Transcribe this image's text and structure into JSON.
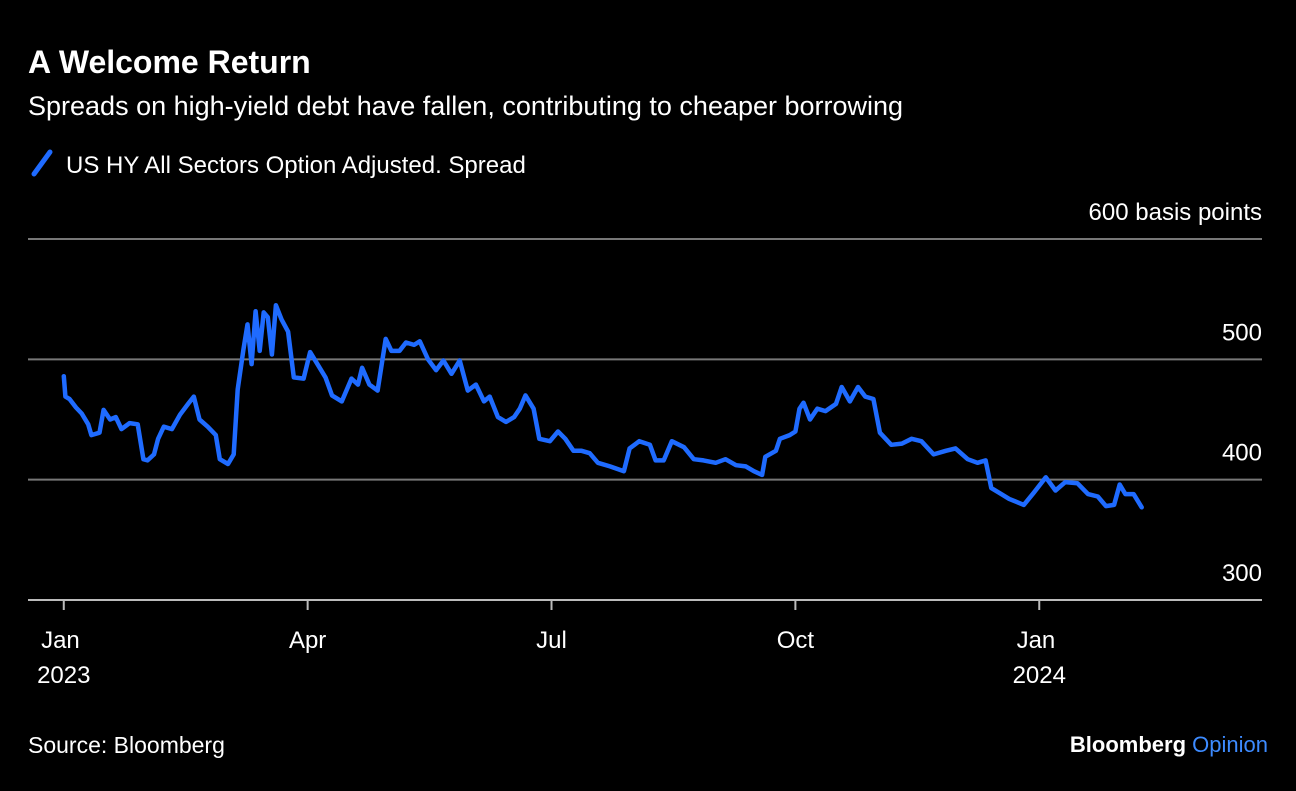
{
  "chart_data": {
    "type": "line",
    "title": "A Welcome Return",
    "subtitle": "Spreads on high-yield debt have fallen, contributing to cheaper borrowing",
    "source": "Source: Bloomberg",
    "brand": "Bloomberg",
    "brand_section": "Opinion",
    "x": [
      0,
      0.02,
      0.07,
      0.15,
      0.22,
      0.3,
      0.34,
      0.44,
      0.49,
      0.57,
      0.64,
      0.71,
      0.81,
      0.91,
      0.98,
      1.03,
      1.11,
      1.16,
      1.23,
      1.33,
      1.43,
      1.53,
      1.6,
      1.67,
      1.77,
      1.87,
      1.92,
      2.02,
      2.09,
      2.14,
      2.21,
      2.26,
      2.31,
      2.36,
      2.41,
      2.46,
      2.51,
      2.56,
      2.61,
      2.68,
      2.76,
      2.83,
      2.95,
      3.03,
      3.12,
      3.22,
      3.3,
      3.42,
      3.54,
      3.62,
      3.67,
      3.76,
      3.86,
      3.96,
      4.03,
      4.13,
      4.21,
      4.31,
      4.38,
      4.48,
      4.58,
      4.67,
      4.77,
      4.87,
      4.97,
      5.07,
      5.17,
      5.24,
      5.34,
      5.44,
      5.54,
      5.61,
      5.68,
      5.78,
      5.85,
      5.98,
      6.08,
      6.17,
      6.27,
      6.37,
      6.47,
      6.57,
      6.72,
      6.89,
      6.96,
      7.08,
      7.21,
      7.28,
      7.38,
      7.48,
      7.63,
      7.75,
      7.87,
      8.02,
      8.14,
      8.27,
      8.39,
      8.49,
      8.59,
      8.63,
      8.76,
      8.81,
      8.93,
      9.0,
      9.05,
      9.1,
      9.18,
      9.27,
      9.37,
      9.5,
      9.57,
      9.67,
      9.77,
      9.86,
      9.96,
      10.04,
      10.18,
      10.31,
      10.43,
      10.55,
      10.7,
      10.85,
      10.97,
      11.12,
      11.24,
      11.34,
      11.41,
      11.51,
      11.63,
      11.81,
      11.93,
      12.08,
      12.2,
      12.32,
      12.47,
      12.6,
      12.72,
      12.82,
      12.92,
      12.99,
      13.06,
      13.16,
      13.26
    ],
    "series": [
      {
        "name": "US HY All Sectors Option Adjusted. Spread",
        "color": "#1f6bff",
        "values": [
          486,
          469,
          467,
          460,
          455,
          446,
          437,
          439,
          458,
          450,
          452,
          442,
          447,
          446,
          417,
          416,
          421,
          434,
          444,
          442,
          454,
          463,
          469,
          450,
          444,
          437,
          417,
          413,
          421,
          475,
          508,
          529,
          496,
          540,
          507,
          539,
          535,
          504,
          545,
          533,
          523,
          485,
          484,
          506,
          496,
          485,
          470,
          465,
          484,
          479,
          493,
          479,
          474,
          517,
          507,
          507,
          514,
          512,
          515,
          500,
          491,
          499,
          488,
          499,
          474,
          479,
          465,
          469,
          452,
          448,
          452,
          459,
          470,
          459,
          434,
          432,
          440,
          434,
          424,
          424,
          422,
          414,
          411,
          407,
          426,
          432,
          429,
          416,
          416,
          432,
          427,
          417,
          416,
          414,
          417,
          412,
          411,
          407,
          404,
          419,
          424,
          434,
          437,
          440,
          459,
          464,
          450,
          459,
          457,
          463,
          477,
          465,
          477,
          469,
          467,
          439,
          429,
          430,
          434,
          432,
          421,
          424,
          426,
          417,
          414,
          416,
          393,
          389,
          384,
          379,
          389,
          402,
          391,
          398,
          397,
          388,
          386,
          378,
          379,
          396,
          388,
          388,
          377
        ]
      }
    ],
    "xlim": [
      -0.44,
      14.74
    ],
    "xticks": [
      {
        "value": 0,
        "label": "Jan 2023"
      },
      {
        "value": 3,
        "label": "Apr"
      },
      {
        "value": 6,
        "label": "Jul"
      },
      {
        "value": 9,
        "label": "Oct"
      },
      {
        "value": 12,
        "label": "Jan 2024"
      }
    ],
    "ylim": [
      300,
      600
    ],
    "yticks": [
      300,
      400,
      500,
      {
        "value": 600,
        "label": "600 basis points"
      }
    ],
    "grid": true
  }
}
